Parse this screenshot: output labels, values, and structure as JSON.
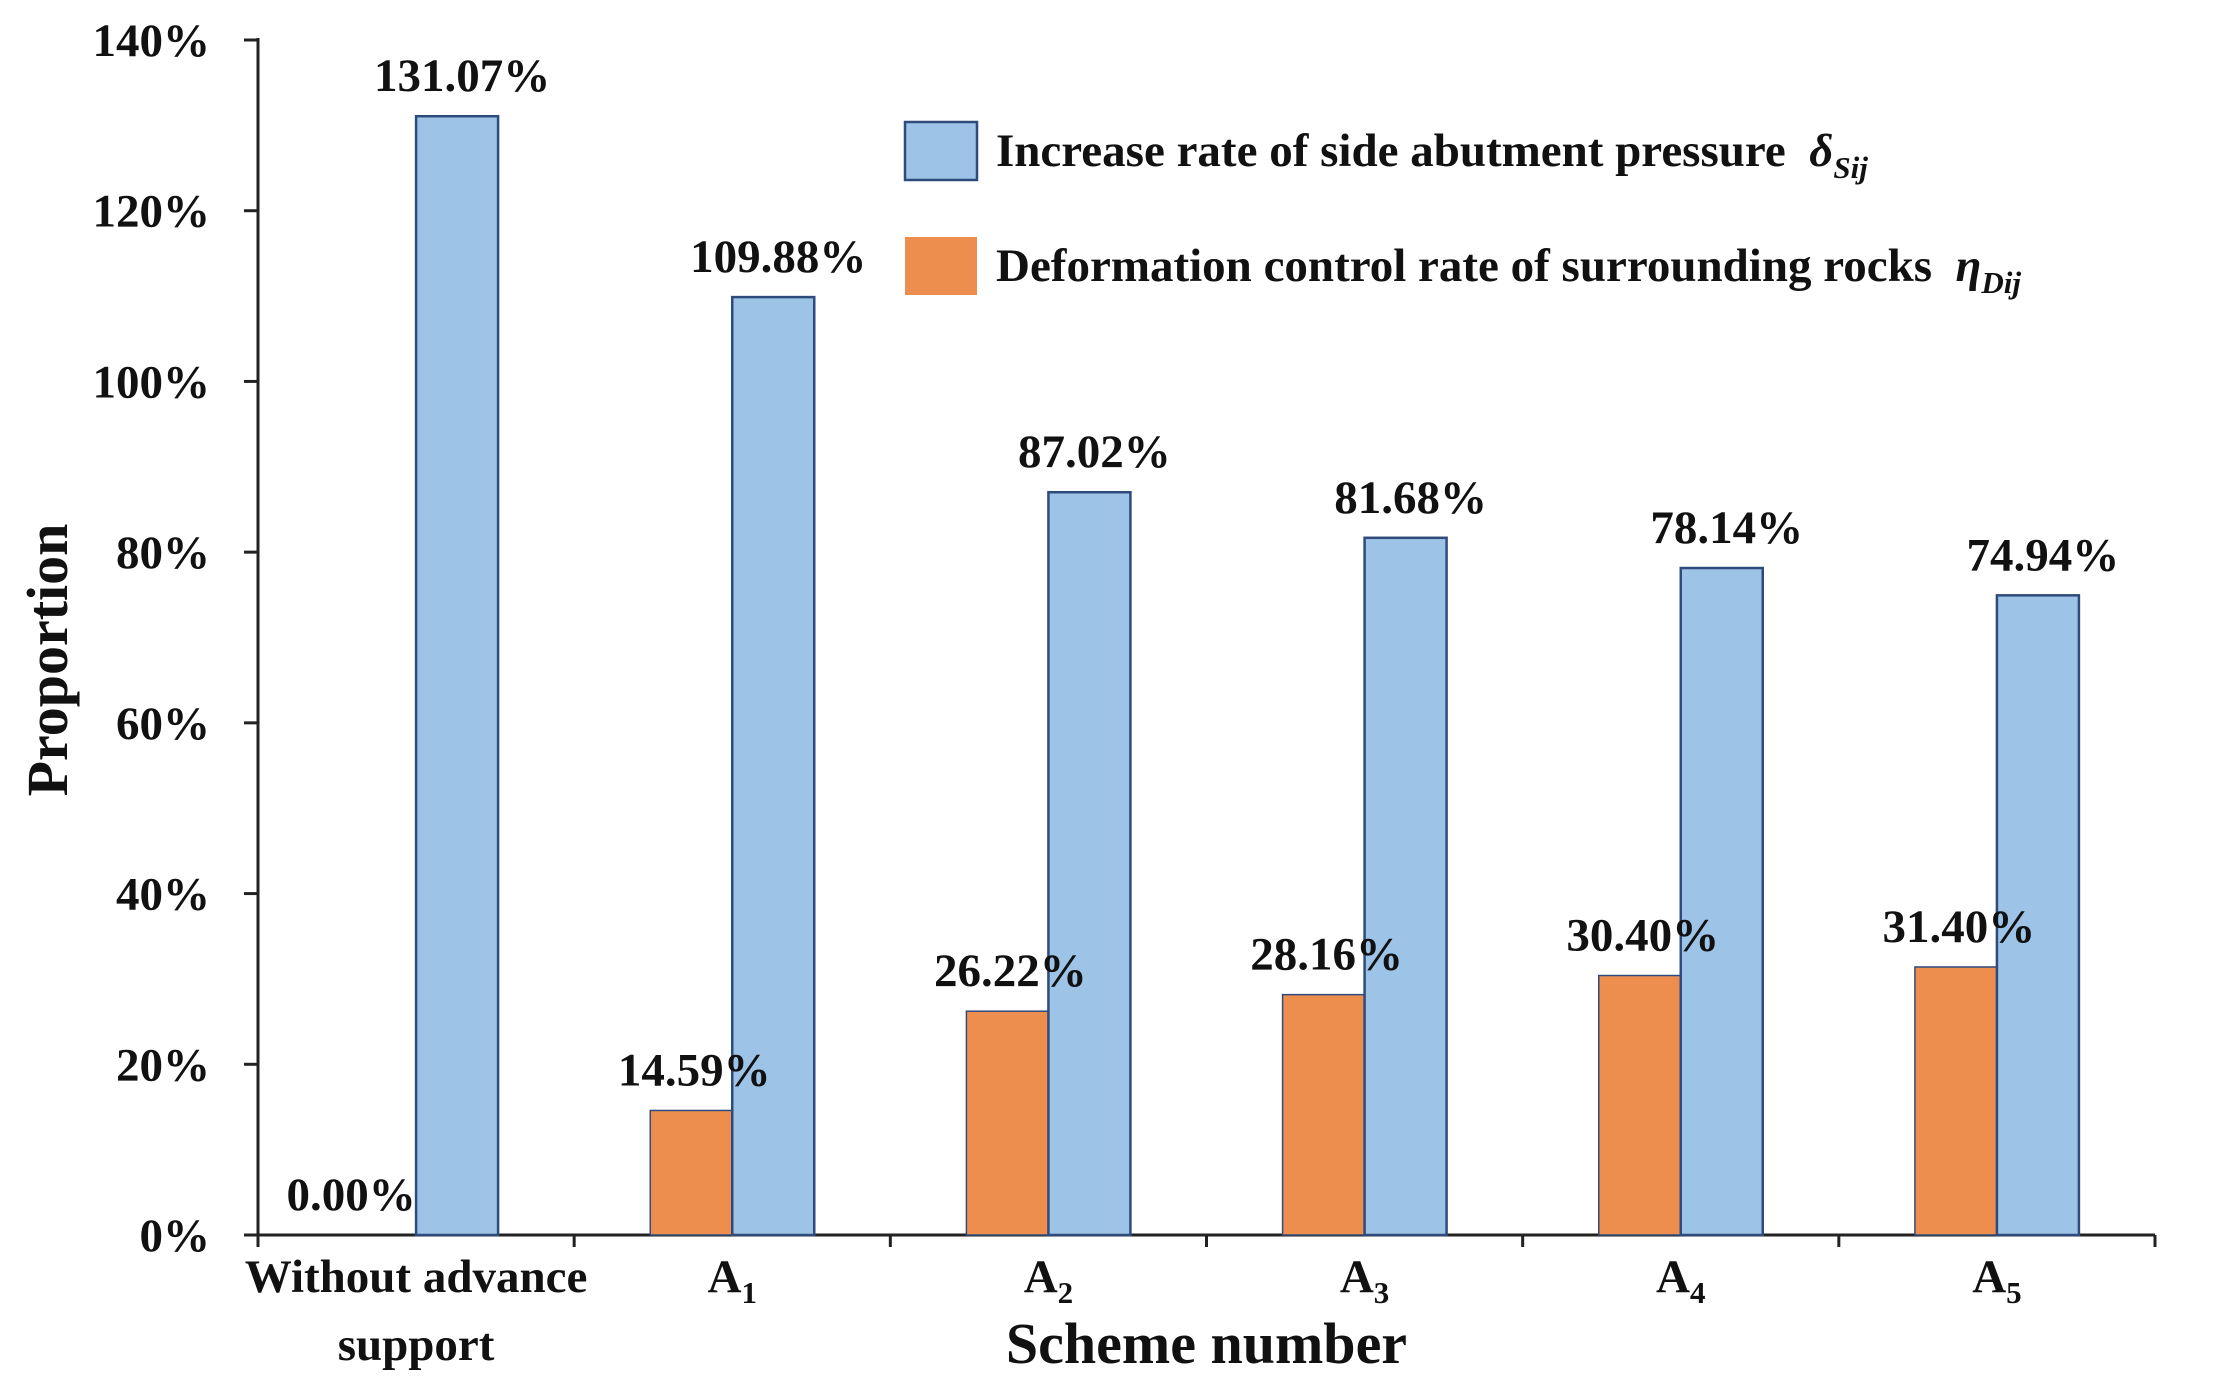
{
  "chart_data": {
    "type": "bar",
    "title": "",
    "xlabel": "Scheme number",
    "ylabel": "Proportion",
    "ylim": [
      0,
      140
    ],
    "y_ticks": [
      "0%",
      "20%",
      "40%",
      "60%",
      "80%",
      "100%",
      "120%",
      "140%"
    ],
    "categories": [
      {
        "main": "Without advance",
        "sub": "",
        "line2": "support"
      },
      {
        "main": "A",
        "sub": "1",
        "line2": ""
      },
      {
        "main": "A",
        "sub": "2",
        "line2": ""
      },
      {
        "main": "A",
        "sub": "3",
        "line2": ""
      },
      {
        "main": "A",
        "sub": "4",
        "line2": ""
      },
      {
        "main": "A",
        "sub": "5",
        "line2": ""
      }
    ],
    "series": [
      {
        "name": "Deformation control rate of surrounding rocks",
        "symbol": "η",
        "symbol_sub": "Dij",
        "color": "#EE8E4E",
        "values": [
          0.0,
          14.59,
          26.22,
          28.16,
          30.4,
          31.4
        ],
        "labels": [
          "0.00%",
          "14.59%",
          "26.22%",
          "28.16%",
          "30.40%",
          "31.40%"
        ]
      },
      {
        "name": "Increase rate of side abutment pressure",
        "symbol": "δ",
        "symbol_sub": "Sij",
        "color": "#9DC3E6",
        "values": [
          131.07,
          109.88,
          87.02,
          81.68,
          78.14,
          74.94
        ],
        "labels": [
          "131.07%",
          "109.88%",
          "87.02%",
          "81.68%",
          "78.14%",
          "74.94%"
        ]
      }
    ],
    "legend_order": [
      1,
      0
    ],
    "legend_position": "top-right",
    "grid": false
  }
}
